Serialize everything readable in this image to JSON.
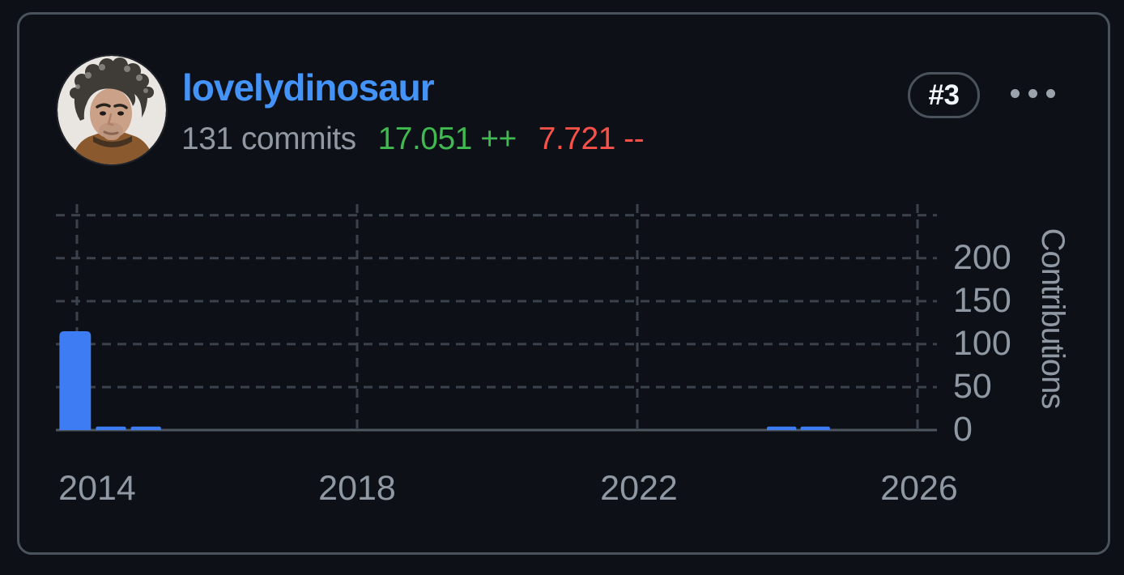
{
  "page": {
    "background": "#0d1117",
    "card_border_color": "#4a525b"
  },
  "header": {
    "username": "lovelydinosaur",
    "username_color": "#4493f8",
    "commits_text": "131 commits",
    "additions_text": "17.051 ++",
    "additions_color": "#3fb950",
    "deletions_text": "7.721 --",
    "deletions_color": "#f85149",
    "rank_badge": "#3",
    "menu_icon": "kebab-horizontal-icon",
    "avatar_icon": "user-photo-avatar"
  },
  "chart_data": {
    "type": "bar",
    "title": "",
    "xlabel": "",
    "ylabel": "Contributions",
    "ylabel_position": "right-rotated",
    "x_ticks": [
      "2014",
      "2018",
      "2022",
      "2026"
    ],
    "x_tick_years": [
      2014,
      2018,
      2022,
      2026
    ],
    "y_ticks": [
      "0",
      "50",
      "100",
      "150",
      "200"
    ],
    "y_tick_values": [
      0,
      50,
      100,
      150,
      200
    ],
    "ylim": [
      0,
      250
    ],
    "grid": "dashed",
    "grid_color": "#3b424b",
    "axis_color": "#4e565f",
    "tick_label_color": "#9099a3",
    "bar_color": "#3d7cf3",
    "series_name": "contributions",
    "bars": [
      {
        "start_year": 2013.75,
        "end_year": 2014.2,
        "value": 115
      },
      {
        "start_year": 2014.27,
        "end_year": 2014.7,
        "value": 4
      },
      {
        "start_year": 2014.77,
        "end_year": 2015.2,
        "value": 4
      },
      {
        "start_year": 2023.85,
        "end_year": 2024.27,
        "value": 4
      },
      {
        "start_year": 2024.33,
        "end_year": 2024.75,
        "value": 4
      }
    ]
  }
}
